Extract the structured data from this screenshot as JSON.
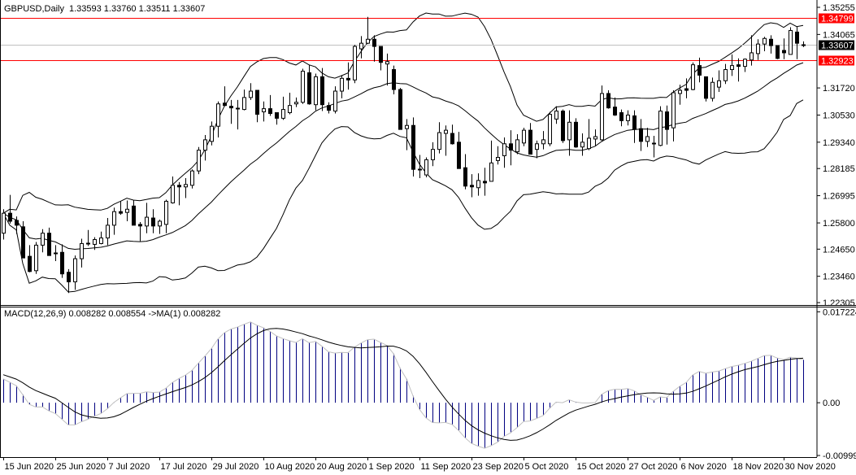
{
  "chart_data": [
    {
      "type": "candlestick",
      "symbol": "GBPUSD",
      "timeframe": "Daily",
      "header": "GBPUSD,Daily",
      "header_values": "1.33593 1.33760 1.33511 1.33607",
      "overlays": [
        "bollinger-bands"
      ],
      "ylim": [
        1.222,
        1.35576
      ],
      "price_ticks": [
        "1.35255",
        "1.34065",
        "1.31720",
        "1.30530",
        "1.29340",
        "1.28185",
        "1.26995",
        "1.25800",
        "1.24650",
        "1.23460",
        "1.22305"
      ],
      "hlines": [
        {
          "value": "1.34799",
          "color": "#ff0000",
          "label_bg": "#ff0000"
        },
        {
          "value": "1.32923",
          "color": "#ff0000",
          "label_bg": "#ff0000"
        },
        {
          "value": "1.33607",
          "color": "#c0c0c0",
          "label_bg": "#000000"
        }
      ],
      "date_labels": [
        "15 Jun 2020",
        "25 Jun 2020",
        "7 Jul 2020",
        "17 Jul 2020",
        "29 Jul 2020",
        "10 Aug 2020",
        "20 Aug 2020",
        "1 Sep 2020",
        "11 Sep 2020",
        "23 Sep 2020",
        "5 Oct 2020",
        "15 Oct 2020",
        "27 Oct 2020",
        "6 Nov 2020",
        "18 Nov 2020",
        "30 Nov 2020"
      ],
      "ohlc": [
        [
          1.2535,
          1.264,
          1.2507,
          1.26225
        ],
        [
          1.26225,
          1.2703,
          1.2577,
          1.25875
        ],
        [
          1.2591,
          1.26085,
          1.25315,
          1.257
        ],
        [
          1.2563,
          1.25875,
          1.24265,
          1.24265
        ],
        [
          1.24335,
          1.24825,
          1.23635,
          1.2367
        ],
        [
          1.23705,
          1.24965,
          1.23565,
          1.24825
        ],
        [
          1.24825,
          1.25525,
          1.2451,
          1.2535
        ],
        [
          1.2535,
          1.25595,
          1.2437,
          1.2437
        ],
        [
          1.24475,
          1.24825,
          1.24125,
          1.2444
        ],
        [
          1.2451,
          1.2486,
          1.2339,
          1.23565
        ],
        [
          1.23635,
          1.23775,
          1.22725,
          1.23215
        ],
        [
          1.23215,
          1.2437,
          1.22865,
          1.2423
        ],
        [
          1.2423,
          1.25105,
          1.23845,
          1.24895
        ],
        [
          1.24895,
          1.2549,
          1.2479,
          1.2486
        ],
        [
          1.2486,
          1.25175,
          1.24615,
          1.2507
        ],
        [
          1.24895,
          1.2542,
          1.2486,
          1.2514
        ],
        [
          1.2514,
          1.26015,
          1.24825,
          1.257
        ],
        [
          1.257,
          1.2647,
          1.2528,
          1.26295
        ],
        [
          1.26295,
          1.2675,
          1.26155,
          1.26225
        ],
        [
          1.2626,
          1.26785,
          1.25875,
          1.264
        ],
        [
          1.2654,
          1.26785,
          1.257,
          1.257
        ],
        [
          1.25735,
          1.2584,
          1.25,
          1.25665
        ],
        [
          1.25665,
          1.2668,
          1.2535,
          1.2605
        ],
        [
          1.26015,
          1.264,
          1.2535,
          1.25665
        ],
        [
          1.25665,
          1.25945,
          1.25315,
          1.25875
        ],
        [
          1.25735,
          1.2682,
          1.2535,
          1.2675
        ],
        [
          1.2668,
          1.27835,
          1.26645,
          1.2745
        ],
        [
          1.2745,
          1.2759,
          1.26575,
          1.2738
        ],
        [
          1.2738,
          1.27765,
          1.2689,
          1.27485
        ],
        [
          1.2745,
          1.2815,
          1.2731,
          1.2808
        ],
        [
          1.2808,
          1.2913,
          1.2794,
          1.2899
        ],
        [
          1.2899,
          1.29655,
          1.28535,
          1.29445
        ],
        [
          1.29375,
          1.3025,
          1.292,
          1.3004
        ],
        [
          1.3004,
          1.31125,
          1.2955,
          1.3102
        ],
        [
          1.31055,
          1.3179,
          1.30915,
          1.3095
        ],
        [
          1.30915,
          1.31195,
          1.30145,
          1.30845
        ],
        [
          1.30845,
          1.31195,
          1.299,
          1.3081
        ],
        [
          1.30775,
          1.3165,
          1.3074,
          1.313
        ],
        [
          1.313,
          1.3193,
          1.31195,
          1.3158
        ],
        [
          1.31615,
          1.31615,
          1.30215,
          1.30565
        ],
        [
          1.3067,
          1.31125,
          1.3025,
          1.3081
        ],
        [
          1.3081,
          1.31405,
          1.30495,
          1.306
        ],
        [
          1.30635,
          1.30635,
          1.3011,
          1.3039
        ],
        [
          1.3039,
          1.31335,
          1.3032,
          1.30775
        ],
        [
          1.30635,
          1.3151,
          1.30565,
          1.3095
        ],
        [
          1.3102,
          1.313,
          1.3088,
          1.3109
        ],
        [
          1.3109,
          1.3256,
          1.3102,
          1.32455
        ],
        [
          1.32385,
          1.32735,
          1.30985,
          1.3102
        ],
        [
          1.30985,
          1.3235,
          1.3074,
          1.3221
        ],
        [
          1.3221,
          1.32595,
          1.30705,
          1.30985
        ],
        [
          1.3095,
          1.3109,
          1.306,
          1.3074
        ],
        [
          1.30705,
          1.3179,
          1.306,
          1.3158
        ],
        [
          1.3158,
          1.3228,
          1.31265,
          1.3214
        ],
        [
          1.3214,
          1.3284,
          1.3165,
          1.3207
        ],
        [
          1.3207,
          1.3361,
          1.3193,
          1.3354
        ],
        [
          1.33435,
          1.33995,
          1.33015,
          1.3368
        ],
        [
          1.3368,
          1.34835,
          1.33645,
          1.33855
        ],
        [
          1.33855,
          1.3403,
          1.32875,
          1.3354
        ],
        [
          1.3354,
          1.3354,
          1.3249,
          1.3284
        ],
        [
          1.3277,
          1.33225,
          1.31825,
          1.32875
        ],
        [
          1.32525,
          1.327,
          1.3144,
          1.3165
        ],
        [
          1.3165,
          1.3172,
          1.299,
          1.299
        ],
        [
          1.29935,
          1.30355,
          1.2899,
          1.30075
        ],
        [
          1.30075,
          1.30425,
          1.27835,
          1.2815
        ],
        [
          1.2815,
          1.2878,
          1.27765,
          1.28115
        ],
        [
          1.27905,
          1.28675,
          1.278,
          1.2857
        ],
        [
          1.2857,
          1.2934,
          1.2829,
          1.29025
        ],
        [
          1.29025,
          1.30215,
          1.2885,
          1.2976
        ],
        [
          1.29725,
          1.30075,
          1.28745,
          1.29865
        ],
        [
          1.29725,
          1.3011,
          1.29235,
          1.2927
        ],
        [
          1.2934,
          1.29795,
          1.28185,
          1.28185
        ],
        [
          1.2822,
          1.28815,
          1.27275,
          1.27415
        ],
        [
          1.2745,
          1.2794,
          1.26925,
          1.2738
        ],
        [
          1.27345,
          1.27975,
          1.26995,
          1.2766
        ],
        [
          1.27625,
          1.2822,
          1.26995,
          1.27555
        ],
        [
          1.27625,
          1.2941,
          1.27625,
          1.2843
        ],
        [
          1.28535,
          1.29165,
          1.2836,
          1.28675
        ],
        [
          1.28745,
          1.2955,
          1.2822,
          1.2927
        ],
        [
          1.2927,
          1.29865,
          1.28325,
          1.2899
        ],
        [
          1.2892,
          1.2969,
          1.28815,
          1.29445
        ],
        [
          1.29305,
          1.2997,
          1.29165,
          1.29865
        ],
        [
          1.29865,
          1.3018,
          1.28815,
          1.28815
        ],
        [
          1.29025,
          1.2941,
          1.2864,
          1.2927
        ],
        [
          1.2927,
          1.2983,
          1.29025,
          1.29445
        ],
        [
          1.2927,
          1.3067,
          1.29165,
          1.30565
        ],
        [
          1.30355,
          1.30915,
          1.30145,
          1.30705
        ],
        [
          1.30705,
          1.30775,
          1.29305,
          1.2941
        ],
        [
          1.29445,
          1.3074,
          1.28745,
          1.30215
        ],
        [
          1.30215,
          1.3039,
          1.29095,
          1.2913
        ],
        [
          1.2913,
          1.29725,
          1.28745,
          1.2934
        ],
        [
          1.2906,
          1.30355,
          1.2899,
          1.29515
        ],
        [
          1.2948,
          1.299,
          1.29165,
          1.29585
        ],
        [
          1.29445,
          1.31825,
          1.29375,
          1.31475
        ],
        [
          1.31475,
          1.31615,
          1.3081,
          1.30845
        ],
        [
          1.3088,
          1.313,
          1.30495,
          1.3053
        ],
        [
          1.30635,
          1.30775,
          1.3004,
          1.30285
        ],
        [
          1.30285,
          1.3074,
          1.30075,
          1.3053
        ],
        [
          1.30495,
          1.3074,
          1.29305,
          1.299
        ],
        [
          1.29935,
          1.30355,
          1.28955,
          1.29375
        ],
        [
          1.29375,
          1.2997,
          1.2913,
          1.29585
        ],
        [
          1.29305,
          1.2962,
          1.28675,
          1.2927
        ],
        [
          1.292,
          1.30915,
          1.29165,
          1.30705
        ],
        [
          1.3067,
          1.3095,
          1.29235,
          1.299
        ],
        [
          1.2997,
          1.31615,
          1.29375,
          1.3151
        ],
        [
          1.31475,
          1.3186,
          1.30985,
          1.31615
        ],
        [
          1.31685,
          1.3214,
          1.31265,
          1.31615
        ],
        [
          1.3165,
          1.3284,
          1.31615,
          1.32735
        ],
        [
          1.327,
          1.3305,
          1.31965,
          1.3228
        ],
        [
          1.3221,
          1.3221,
          1.31125,
          1.31265
        ],
        [
          1.31265,
          1.32175,
          1.31125,
          1.31965
        ],
        [
          1.31755,
          1.3249,
          1.31545,
          1.32035
        ],
        [
          1.32035,
          1.3277,
          1.31895,
          1.32525
        ],
        [
          1.32525,
          1.3319,
          1.32245,
          1.327
        ],
        [
          1.32735,
          1.33015,
          1.32,
          1.32665
        ],
        [
          1.32665,
          1.33015,
          1.3242,
          1.3298
        ],
        [
          1.32945,
          1.3403,
          1.327,
          1.3326
        ],
        [
          1.33225,
          1.33855,
          1.32945,
          1.33645
        ],
        [
          1.33645,
          1.3396,
          1.3333,
          1.3389
        ],
        [
          1.33855,
          1.3403,
          1.33225,
          1.33575
        ],
        [
          1.33575,
          1.33575,
          1.3298,
          1.33015
        ],
        [
          1.33365,
          1.3389,
          1.3298,
          1.3326
        ],
        [
          1.3319,
          1.3438,
          1.3319,
          1.3424
        ],
        [
          1.3417,
          1.34415,
          1.3298,
          1.3368
        ],
        [
          1.33593,
          1.3376,
          1.33511,
          1.33607
        ]
      ],
      "colors": {
        "candle": "#000000",
        "bands": "#000000",
        "background": "#ffffff"
      }
    },
    {
      "type": "bar+line",
      "title": "MACD(12,26,9) 0.008282 0.008554  ->MA(1) 0.008282",
      "ylim": [
        -0.0103,
        0.0182
      ],
      "yticks": [
        "0.017224",
        "0.00",
        "-0.009992"
      ],
      "colors": {
        "histogram": "#000080",
        "main_line": "#c0c0c0",
        "signal_line": "#000000"
      }
    }
  ]
}
